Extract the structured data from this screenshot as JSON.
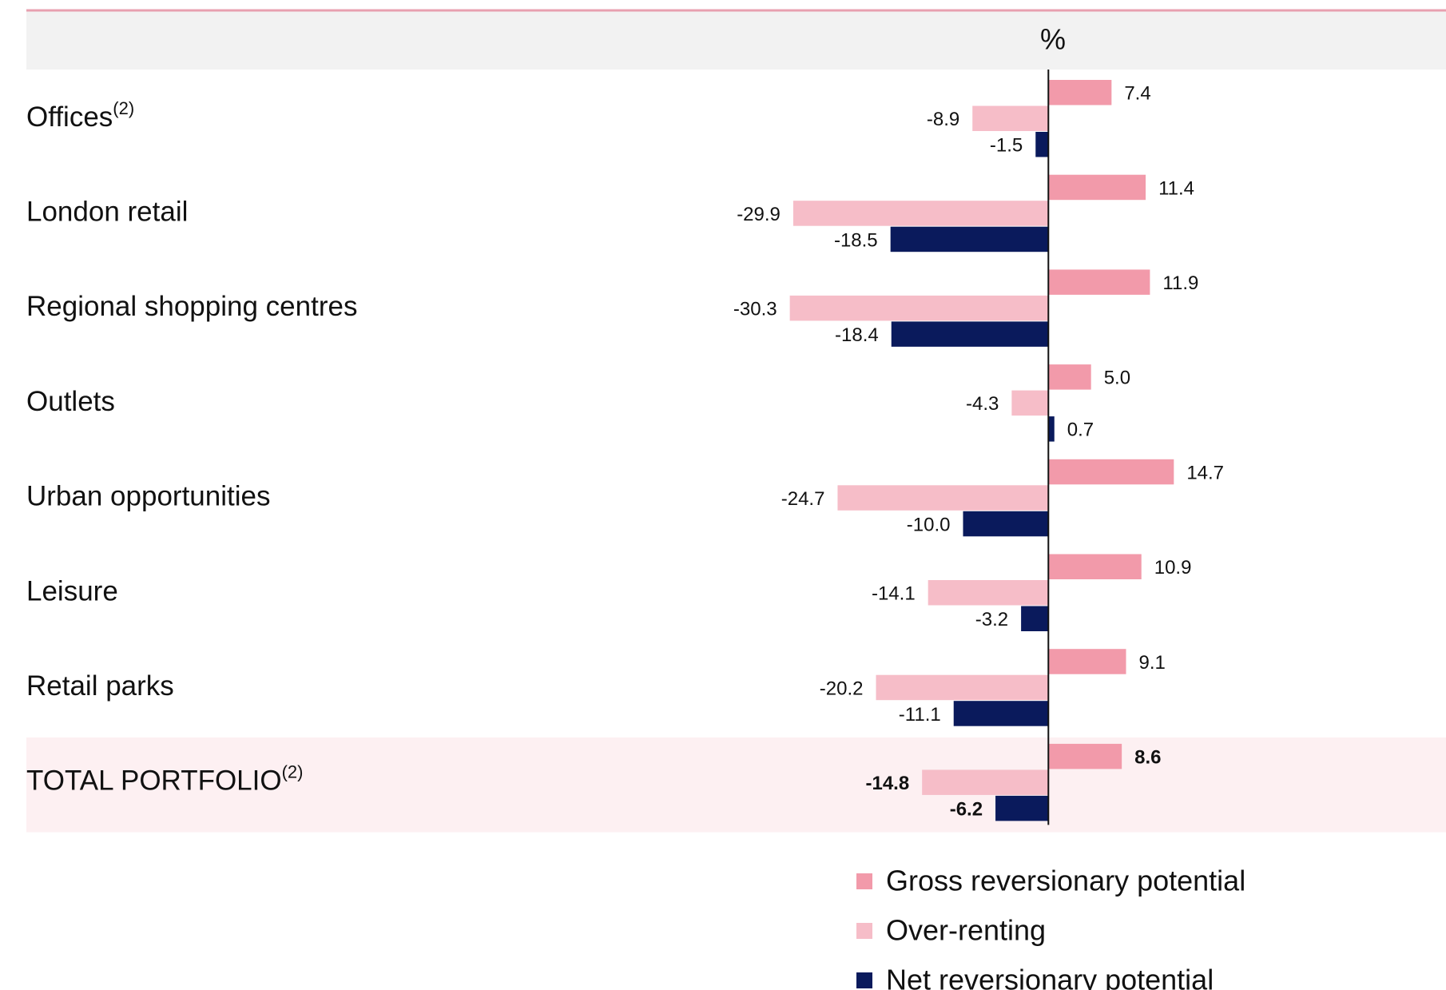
{
  "chart_data": {
    "type": "hbar",
    "axis_label": "%",
    "categories": [
      "Offices",
      "London retail",
      "Regional shopping centres",
      "Outlets",
      "Urban opportunities",
      "Leisure",
      "Retail parks",
      "TOTAL PORTFOLIO"
    ],
    "footnote_refs": [
      "(2)",
      null,
      null,
      null,
      null,
      null,
      null,
      "(2)"
    ],
    "series": [
      {
        "name": "Gross reversionary potential",
        "color": "#f29aaa",
        "values": [
          7.4,
          11.4,
          11.9,
          5.0,
          14.7,
          10.9,
          9.1,
          8.6
        ],
        "value_labels": [
          "7.4",
          "11.4",
          "11.9",
          "5.0",
          "14.7",
          "10.9",
          "9.1",
          "8.6"
        ]
      },
      {
        "name": "Over-renting",
        "color": "#f6bdc8",
        "values": [
          -8.9,
          -29.9,
          -30.3,
          -4.3,
          -24.7,
          -14.1,
          -20.2,
          -14.8
        ]
      },
      {
        "name": "Net reversionary potential",
        "color": "#0a1a5c",
        "values": [
          -1.5,
          -18.5,
          -18.4,
          0.7,
          -10.0,
          -3.2,
          -11.1,
          -6.2
        ],
        "value_labels": [
          "-1.5",
          "-18.5",
          "-18.4",
          "0.7",
          "-10.0",
          "-3.2",
          "-11.1",
          "-6.2"
        ]
      }
    ],
    "xlim": [
      -40,
      45
    ],
    "legend": "bottom"
  }
}
